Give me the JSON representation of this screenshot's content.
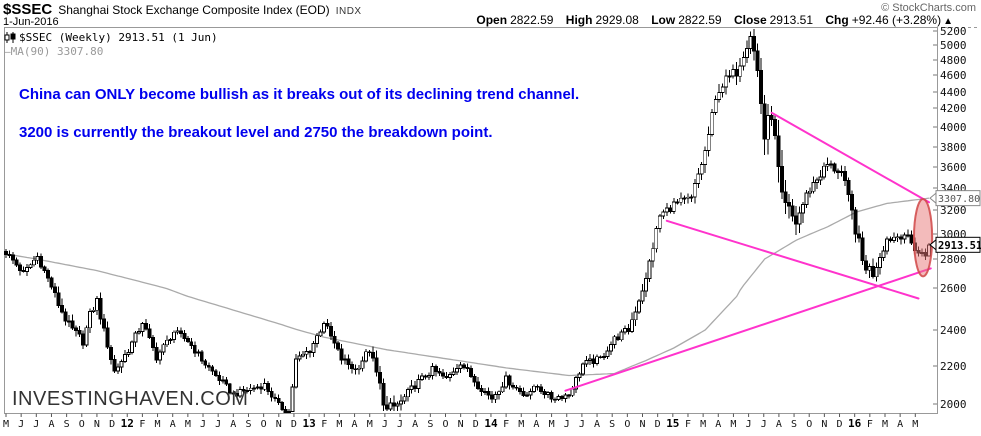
{
  "header": {
    "symbol": "$SSEC",
    "title": "Shanghai Stock Exchange Composite Index (EOD)",
    "exchange": "INDX",
    "date": "1-Jun-2016",
    "copyright": "© StockCharts.com"
  },
  "quote": {
    "open_label": "Open",
    "open_value": "2822.59",
    "high_label": "High",
    "high_value": "2929.08",
    "low_label": "Low",
    "low_value": "2822.59",
    "close_label": "Close",
    "close_value": "2913.51",
    "chg_label": "Chg",
    "chg_value": "+92.46 (+3.28%)",
    "direction_icon": "▲"
  },
  "legend": {
    "series_label": "$SSEC (Weekly) 2913.51 (1 Jun)",
    "ma_swatch": "—",
    "ma_label": "MA(90) 3307.80"
  },
  "annotations": {
    "line1": "China can ONLY become bullish as it breaks out of its declining trend channel.",
    "line2": "3200 is currently the breakout level and 2750 the breakdown point.",
    "color": "#0000EE"
  },
  "watermark": "INVESTINGHAVEN.COM",
  "chart_data": {
    "type": "candlestick",
    "symbol": "$SSEC",
    "timeframe": "Weekly",
    "x_range": "May 2011 - Jun 2016",
    "y_scale": "log",
    "y_ticks": [
      2000,
      2200,
      2400,
      2600,
      2800,
      3000,
      3200,
      3400,
      3600,
      3800,
      4000,
      4200,
      4400,
      4600,
      4800,
      5000,
      5200
    ],
    "x_labels": [
      "M",
      "J",
      "J",
      "A",
      "S",
      "O",
      "N",
      "D",
      "12",
      "F",
      "M",
      "A",
      "M",
      "J",
      "J",
      "A",
      "S",
      "O",
      "N",
      "D",
      "13",
      "F",
      "M",
      "A",
      "M",
      "J",
      "J",
      "A",
      "S",
      "O",
      "N",
      "D",
      "14",
      "F",
      "M",
      "A",
      "M",
      "J",
      "J",
      "A",
      "S",
      "O",
      "N",
      "D",
      "15",
      "F",
      "M",
      "A",
      "M",
      "J",
      "J",
      "A",
      "S",
      "O",
      "N",
      "D",
      "16",
      "F",
      "M",
      "A",
      "M"
    ],
    "last_candle": {
      "date": "1 Jun 2016",
      "open": 2822.59,
      "high": 2929.08,
      "low": 2822.59,
      "close": 2913.51
    },
    "ma90": {
      "period": 90,
      "last_value": 3307.8,
      "anchors": [
        [
          0,
          2840
        ],
        [
          26,
          2720
        ],
        [
          52,
          2560
        ],
        [
          78,
          2430
        ],
        [
          91,
          2360
        ],
        [
          109,
          2290
        ],
        [
          126,
          2240
        ],
        [
          143,
          2190
        ],
        [
          161,
          2150
        ],
        [
          174,
          2160
        ],
        [
          183,
          2230
        ],
        [
          191,
          2300
        ],
        [
          200,
          2400
        ],
        [
          209,
          2560
        ],
        [
          217,
          2800
        ],
        [
          226,
          2950
        ],
        [
          235,
          3060
        ],
        [
          243,
          3180
        ],
        [
          252,
          3260
        ],
        [
          264,
          3307.8
        ]
      ]
    },
    "weekly_close_anchors": [
      [
        0,
        2850,
        50
      ],
      [
        5,
        2700,
        50
      ],
      [
        9,
        2820,
        50
      ],
      [
        14,
        2560,
        55
      ],
      [
        18,
        2420,
        50
      ],
      [
        22,
        2340,
        55
      ],
      [
        24,
        2470,
        45
      ],
      [
        26,
        2540,
        45
      ],
      [
        31,
        2170,
        50
      ],
      [
        35,
        2290,
        45
      ],
      [
        39,
        2440,
        45
      ],
      [
        43,
        2250,
        45
      ],
      [
        48,
        2390,
        40
      ],
      [
        52,
        2340,
        40
      ],
      [
        57,
        2210,
        40
      ],
      [
        61,
        2130,
        40
      ],
      [
        65,
        2050,
        35
      ],
      [
        70,
        2080,
        35
      ],
      [
        74,
        2100,
        40
      ],
      [
        78,
        1990,
        40
      ],
      [
        81,
        1960,
        40
      ],
      [
        83,
        2230,
        50
      ],
      [
        87,
        2290,
        45
      ],
      [
        91,
        2440,
        45
      ],
      [
        96,
        2240,
        50
      ],
      [
        100,
        2180,
        45
      ],
      [
        104,
        2290,
        50
      ],
      [
        109,
        1960,
        90
      ],
      [
        113,
        2010,
        55
      ],
      [
        117,
        2100,
        45
      ],
      [
        122,
        2180,
        40
      ],
      [
        126,
        2130,
        40
      ],
      [
        130,
        2220,
        40
      ],
      [
        135,
        2100,
        40
      ],
      [
        139,
        2030,
        40
      ],
      [
        143,
        2130,
        40
      ],
      [
        148,
        2050,
        35
      ],
      [
        152,
        2090,
        35
      ],
      [
        156,
        2030,
        35
      ],
      [
        161,
        2050,
        35
      ],
      [
        165,
        2210,
        45
      ],
      [
        170,
        2240,
        40
      ],
      [
        174,
        2350,
        45
      ],
      [
        178,
        2400,
        50
      ],
      [
        183,
        2650,
        70
      ],
      [
        187,
        3150,
        90
      ],
      [
        191,
        3250,
        90
      ],
      [
        196,
        3300,
        100
      ],
      [
        200,
        3750,
        130
      ],
      [
        204,
        4450,
        160
      ],
      [
        209,
        4650,
        170
      ],
      [
        213,
        5170,
        220
      ],
      [
        215,
        4650,
        280
      ],
      [
        217,
        3900,
        280
      ],
      [
        219,
        4150,
        200
      ],
      [
        222,
        3240,
        280
      ],
      [
        226,
        3100,
        150
      ],
      [
        230,
        3400,
        120
      ],
      [
        235,
        3620,
        110
      ],
      [
        239,
        3550,
        100
      ],
      [
        243,
        3050,
        130
      ],
      [
        245,
        2780,
        120
      ],
      [
        248,
        2700,
        90
      ],
      [
        252,
        2960,
        80
      ],
      [
        257,
        3000,
        70
      ],
      [
        261,
        2850,
        70
      ],
      [
        263,
        2830,
        60
      ],
      [
        264,
        2913.51,
        50
      ]
    ],
    "trendlines": [
      {
        "name": "declining-channel-resistance",
        "from": [
          219,
          4150
        ],
        "to": [
          264,
          3270
        ],
        "color": "#FF33CC"
      },
      {
        "name": "declining-channel-support",
        "from": [
          189,
          3110
        ],
        "to": [
          261,
          2550
        ],
        "color": "#FF33CC"
      },
      {
        "name": "rising-support",
        "from": [
          160,
          2070
        ],
        "to": [
          264.5,
          2735
        ],
        "color": "#FF33CC"
      }
    ],
    "highlight_ellipse": {
      "center_week": 262.3,
      "top_price": 3300,
      "bottom_price": 2680,
      "week_radius": 2.6,
      "fill": "#E87878",
      "stroke": "#D04848"
    },
    "price_callouts": [
      {
        "value": "3307.80",
        "price": 3307.8,
        "variant": "ma"
      },
      {
        "value": "2913.51",
        "price": 2913.51,
        "variant": "close"
      }
    ],
    "key_levels": {
      "breakout_level": 3200,
      "breakdown_level": 2750
    }
  }
}
